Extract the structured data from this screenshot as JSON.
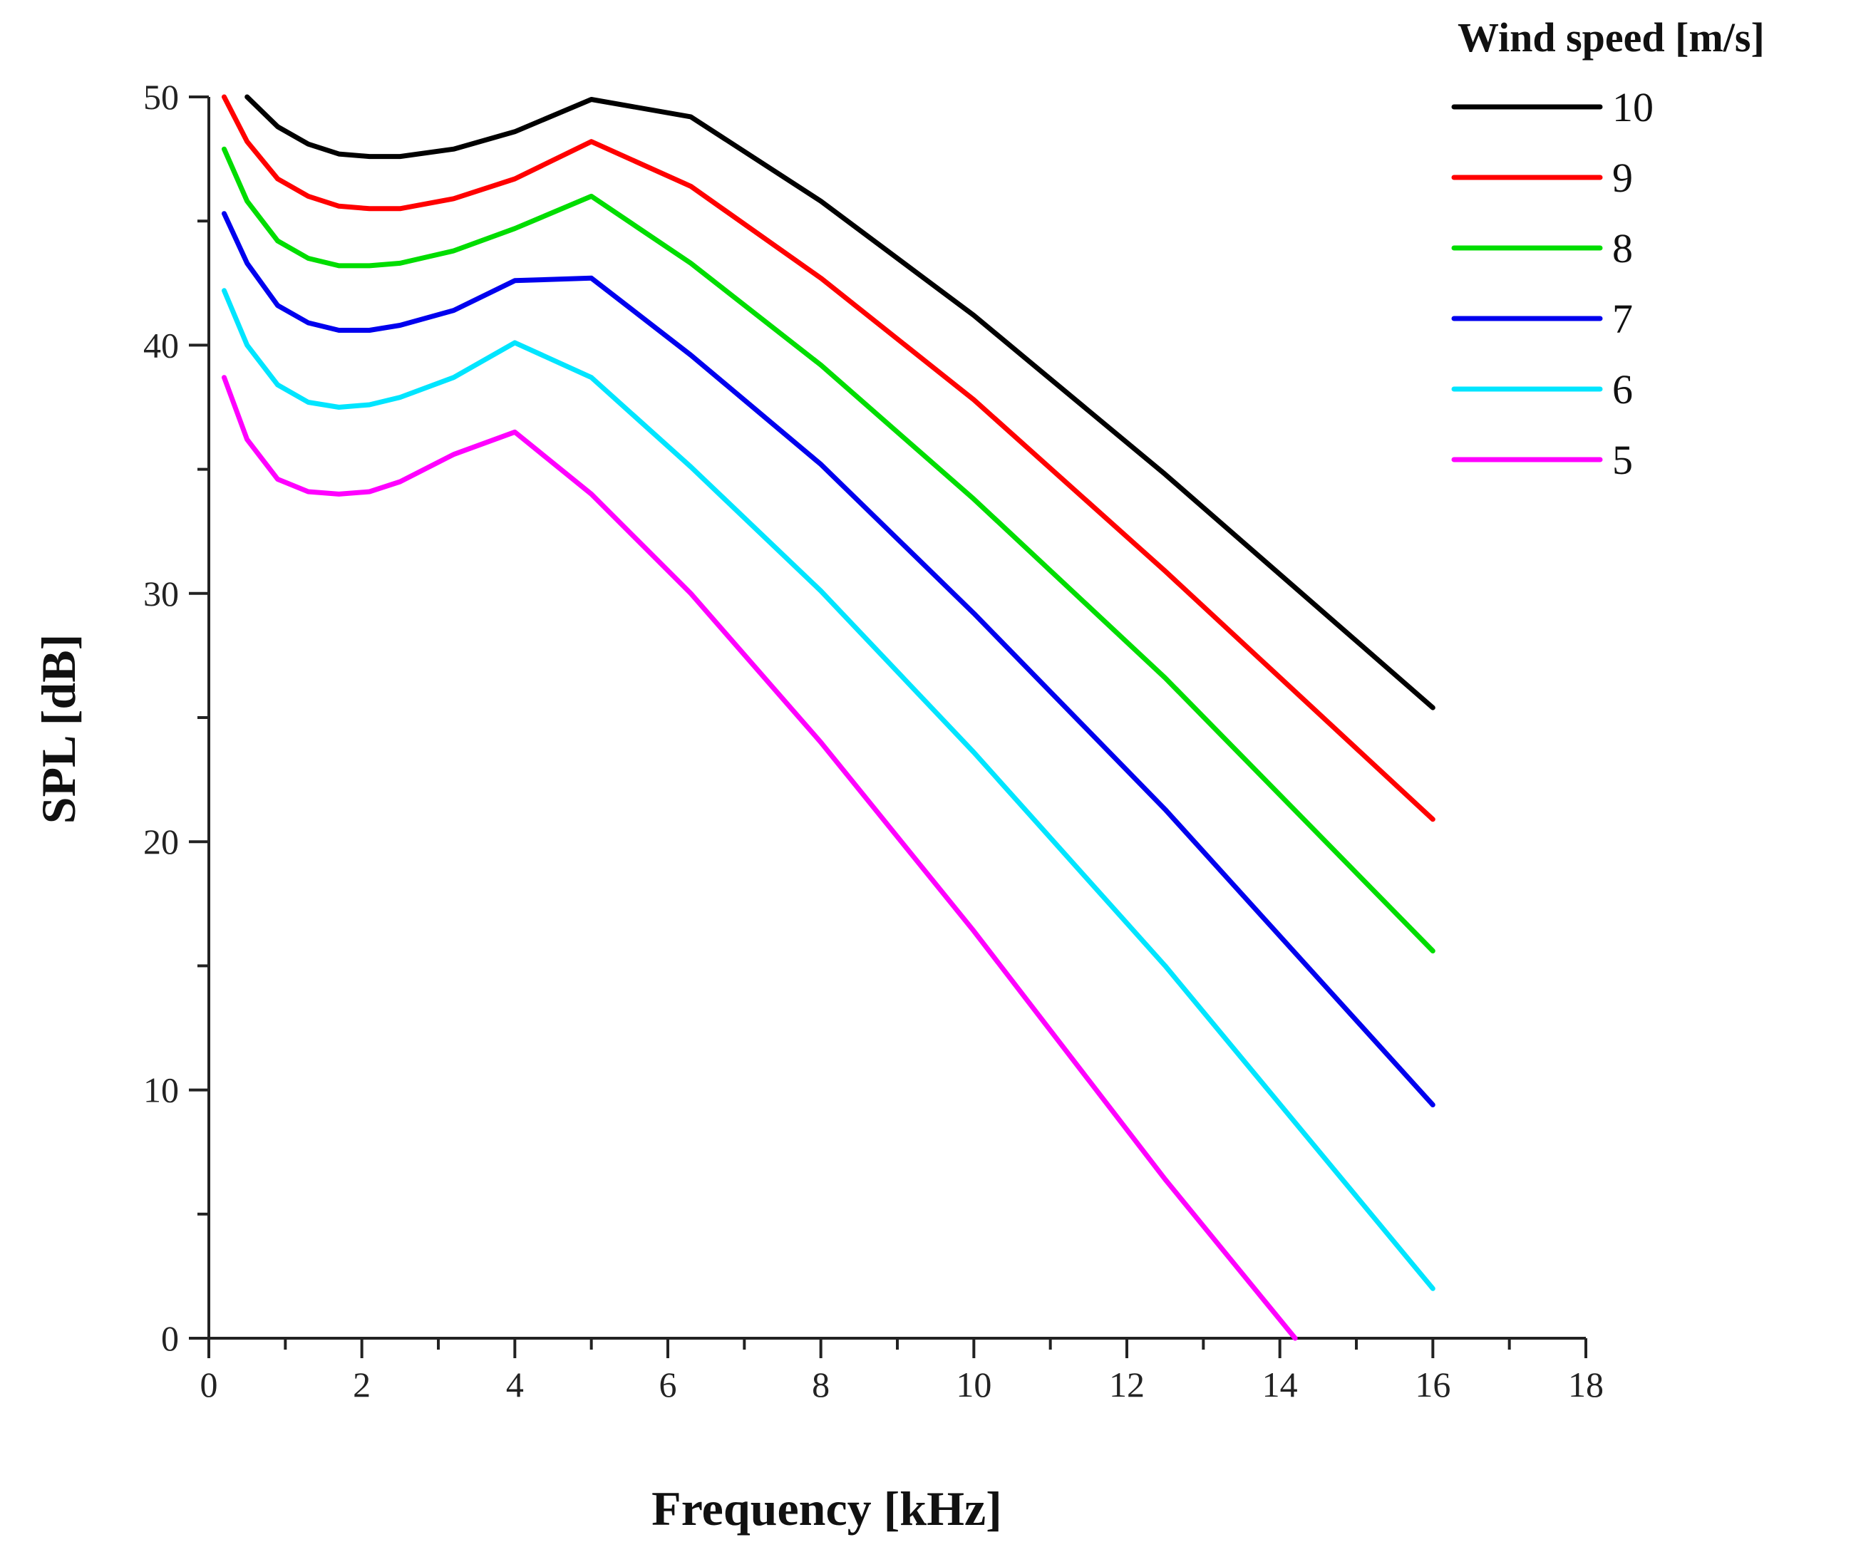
{
  "chart_data": {
    "type": "line",
    "title": "",
    "xlabel": "Frequency [kHz]",
    "ylabel": "SPL [dB]",
    "xlim": [
      0,
      18
    ],
    "ylim": [
      0,
      50
    ],
    "xticks": [
      0,
      2,
      4,
      6,
      8,
      10,
      12,
      14,
      16,
      18
    ],
    "yticks": [
      0,
      10,
      20,
      30,
      40,
      50
    ],
    "grid": false,
    "legend": {
      "title": "Wind speed [m/s]",
      "placement": "top-right"
    },
    "series": [
      {
        "name": "10",
        "color": "#000000",
        "x": [
          0.5,
          0.9,
          1.3,
          1.7,
          2.1,
          2.5,
          3.2,
          4.0,
          5.0,
          6.3,
          8.0,
          10.0,
          12.5,
          16.0
        ],
        "y": [
          50.0,
          48.8,
          48.1,
          47.7,
          47.6,
          47.6,
          47.9,
          48.6,
          49.9,
          49.2,
          45.8,
          41.2,
          34.8,
          25.4
        ]
      },
      {
        "name": "9",
        "color": "#ff0000",
        "x": [
          0.2,
          0.5,
          0.9,
          1.3,
          1.7,
          2.1,
          2.5,
          3.2,
          4.0,
          5.0,
          6.3,
          8.0,
          10.0,
          12.5,
          16.0
        ],
        "y": [
          50.0,
          48.2,
          46.7,
          46.0,
          45.6,
          45.5,
          45.5,
          45.9,
          46.7,
          48.2,
          46.4,
          42.7,
          37.8,
          30.9,
          20.9
        ]
      },
      {
        "name": "8",
        "color": "#00dd00",
        "x": [
          0.2,
          0.5,
          0.9,
          1.3,
          1.7,
          2.1,
          2.5,
          3.2,
          4.0,
          5.0,
          6.3,
          8.0,
          10.0,
          12.5,
          16.0
        ],
        "y": [
          47.9,
          45.8,
          44.2,
          43.5,
          43.2,
          43.2,
          43.3,
          43.8,
          44.7,
          46.0,
          43.3,
          39.2,
          33.8,
          26.6,
          15.6
        ]
      },
      {
        "name": "7",
        "color": "#0000ee",
        "x": [
          0.2,
          0.5,
          0.9,
          1.3,
          1.7,
          2.1,
          2.5,
          3.2,
          4.0,
          5.0,
          6.3,
          8.0,
          10.0,
          12.5,
          16.0
        ],
        "y": [
          45.3,
          43.3,
          41.6,
          40.9,
          40.6,
          40.6,
          40.8,
          41.4,
          42.6,
          42.7,
          39.6,
          35.2,
          29.2,
          21.3,
          9.4
        ]
      },
      {
        "name": "6",
        "color": "#00e5ff",
        "x": [
          0.2,
          0.5,
          0.9,
          1.3,
          1.7,
          2.1,
          2.5,
          3.2,
          4.0,
          5.0,
          6.3,
          8.0,
          10.0,
          12.5,
          16.0
        ],
        "y": [
          42.2,
          40.0,
          38.4,
          37.7,
          37.5,
          37.6,
          37.9,
          38.7,
          40.1,
          38.7,
          35.1,
          30.1,
          23.6,
          15.0,
          2.0
        ]
      },
      {
        "name": "5",
        "color": "#ff00ff",
        "x": [
          0.2,
          0.5,
          0.9,
          1.3,
          1.7,
          2.1,
          2.5,
          3.2,
          4.0,
          5.0,
          6.3,
          8.0,
          10.0,
          12.5,
          14.2
        ],
        "y": [
          38.7,
          36.2,
          34.6,
          34.1,
          34.0,
          34.1,
          34.5,
          35.6,
          36.5,
          34.0,
          30.0,
          24.0,
          16.4,
          6.4,
          0.0
        ]
      }
    ]
  }
}
